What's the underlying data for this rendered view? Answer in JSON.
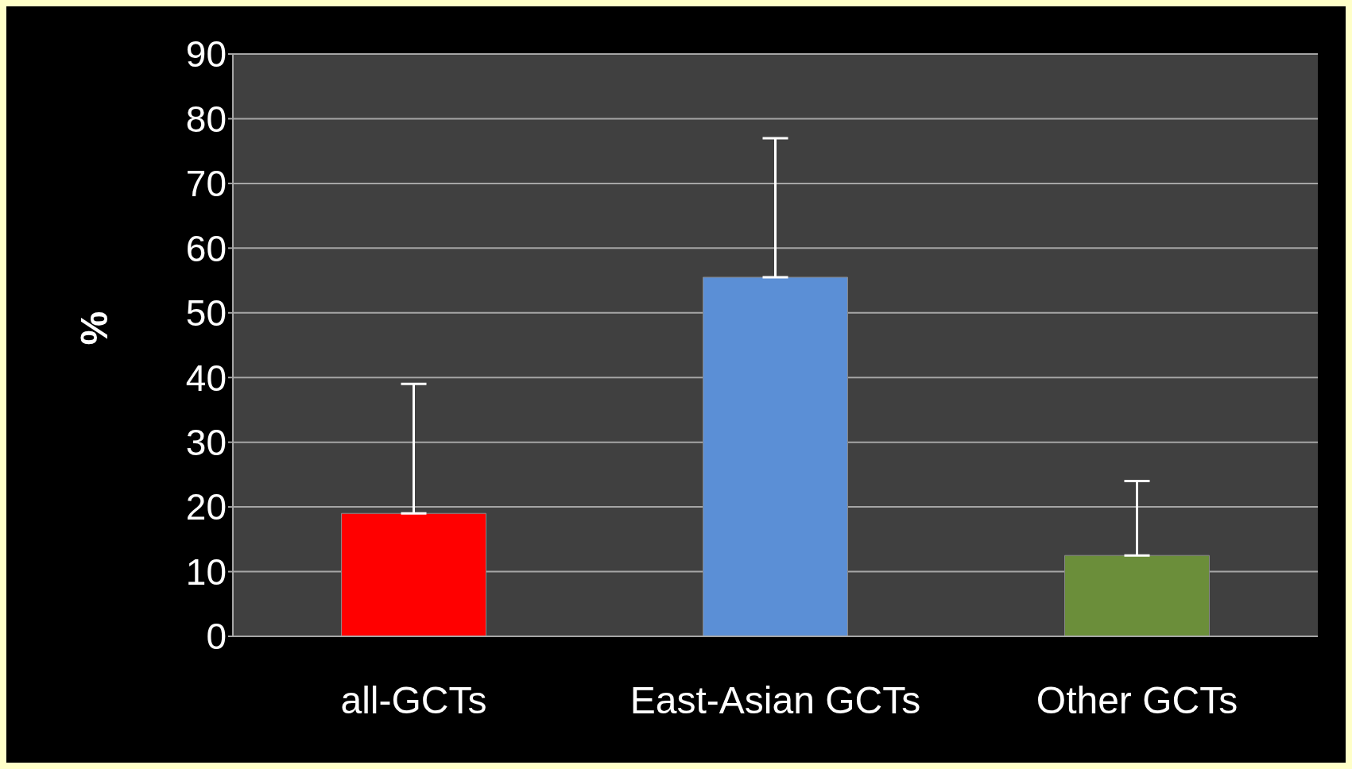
{
  "chart_data": {
    "type": "bar",
    "ylabel": "%",
    "categories": [
      "all-GCTs",
      "East-Asian  GCTs",
      "Other GCTs"
    ],
    "values": [
      19,
      55.5,
      12.5
    ],
    "colors": [
      "#ff0000",
      "#5b8fd6",
      "#6b8e3a"
    ],
    "errors": [
      [
        19,
        39
      ],
      [
        55.5,
        77
      ],
      [
        12.5,
        24
      ]
    ],
    "ylim": [
      0,
      90
    ],
    "yticks": [
      0,
      10,
      20,
      30,
      40,
      50,
      60,
      70,
      80,
      90
    ],
    "grid": "y"
  }
}
